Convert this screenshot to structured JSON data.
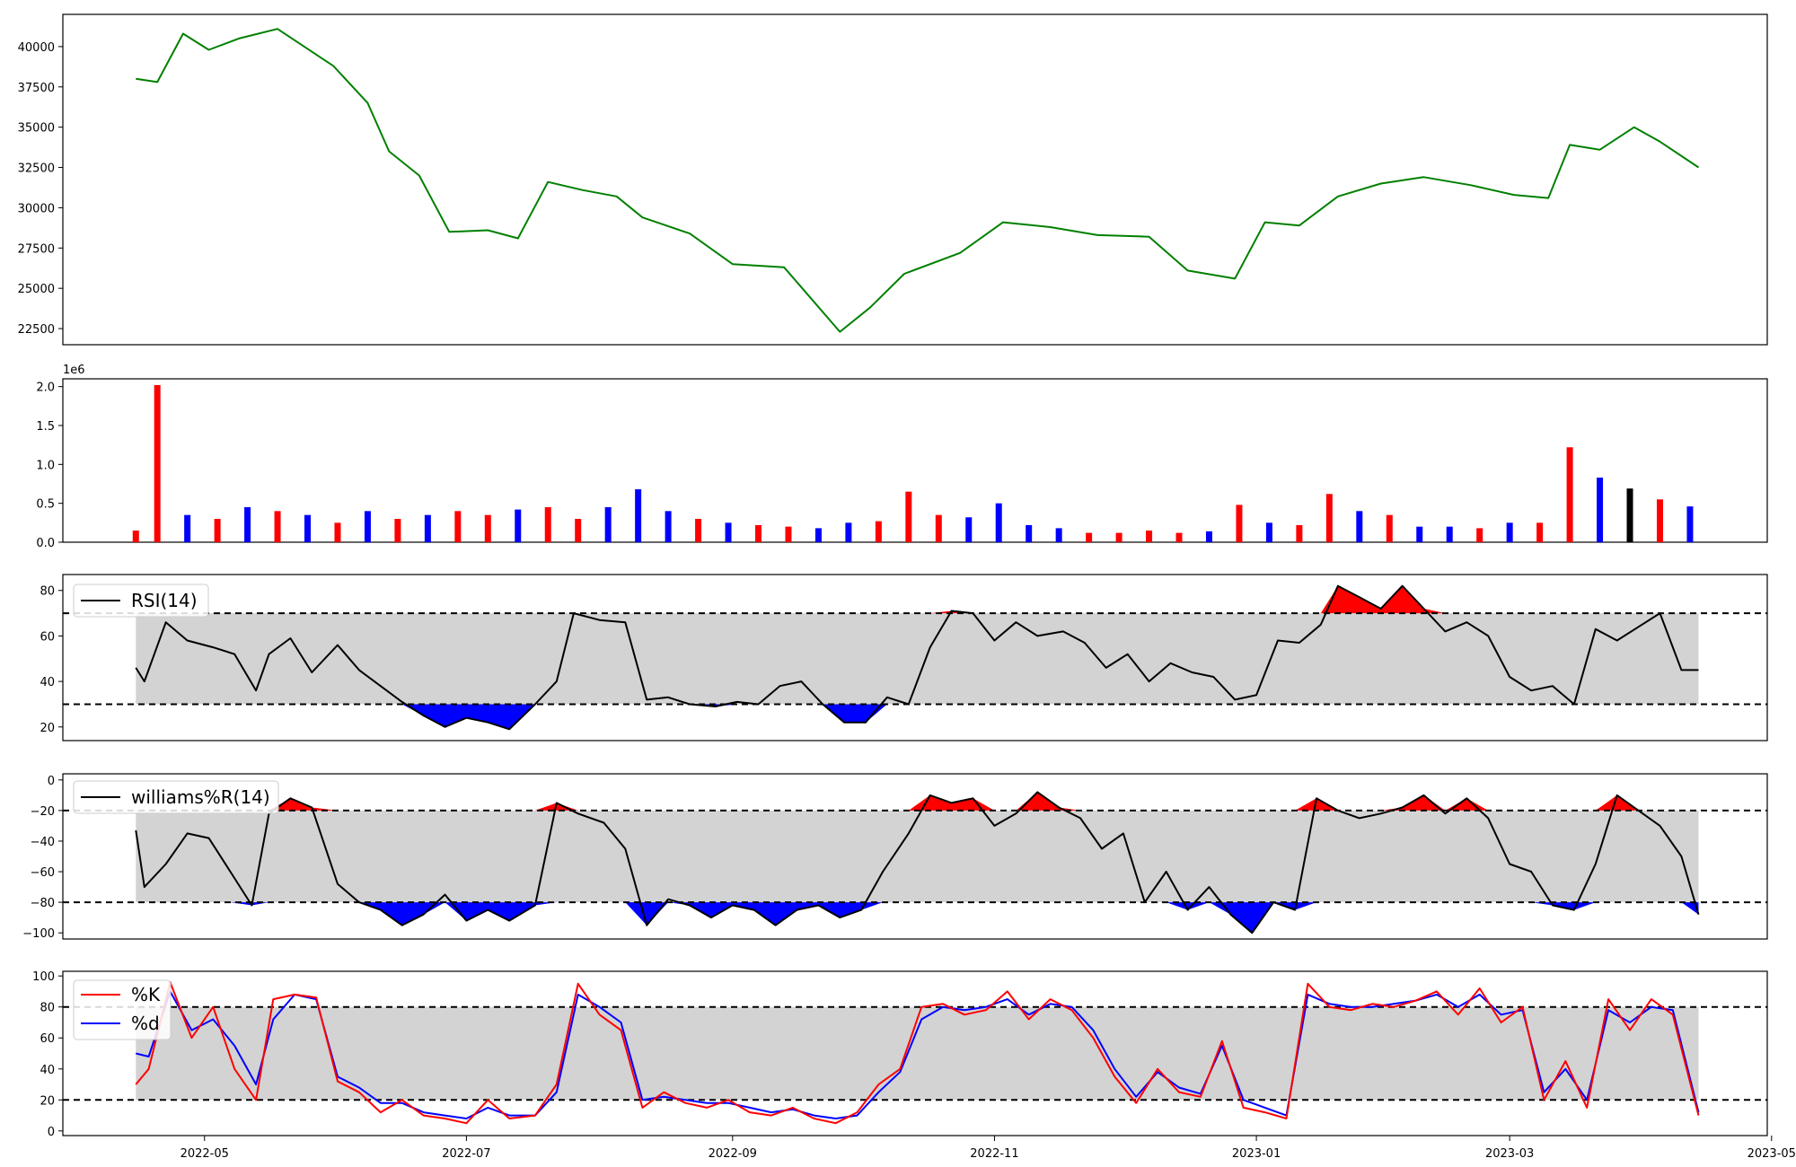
{
  "chart_data": [
    {
      "type": "line",
      "panel": "price",
      "ylim": [
        21500,
        42000
      ],
      "yticks": [
        "22500",
        "25000",
        "27500",
        "30000",
        "32500",
        "35000",
        "37500",
        "40000"
      ],
      "colors": {
        "line": "#008000"
      },
      "x": [
        "2022-04-15",
        "2022-04-20",
        "2022-04-26",
        "2022-05-02",
        "2022-05-09",
        "2022-05-18",
        "2022-05-31",
        "2022-06-08",
        "2022-06-13",
        "2022-06-20",
        "2022-06-27",
        "2022-07-06",
        "2022-07-13",
        "2022-07-20",
        "2022-07-28",
        "2022-08-05",
        "2022-08-11",
        "2022-08-22",
        "2022-09-01",
        "2022-09-13",
        "2022-09-26",
        "2022-10-03",
        "2022-10-11",
        "2022-10-24",
        "2022-11-03",
        "2022-11-14",
        "2022-11-25",
        "2022-12-07",
        "2022-12-16",
        "2022-12-27",
        "2023-01-03",
        "2023-01-11",
        "2023-01-20",
        "2023-01-30",
        "2023-02-09",
        "2023-02-20",
        "2023-03-02",
        "2023-03-10",
        "2023-03-15",
        "2023-03-22",
        "2023-03-30",
        "2023-04-05",
        "2023-04-14"
      ],
      "values": [
        38000,
        37800,
        40800,
        39800,
        40500,
        41100,
        38800,
        36500,
        33500,
        32000,
        28500,
        28600,
        28100,
        31600,
        31100,
        30700,
        29400,
        28400,
        26500,
        26300,
        22300,
        23800,
        25900,
        27200,
        29100,
        28800,
        28300,
        28200,
        26100,
        25600,
        29100,
        28900,
        30700,
        31500,
        31900,
        31400,
        30800,
        30600,
        33900,
        33600,
        35000,
        34100,
        32500
      ]
    },
    {
      "type": "bar",
      "panel": "volume",
      "ylim": [
        0,
        2.1
      ],
      "yticks": [
        "0.0",
        "0.5",
        "1.0",
        "1.5",
        "2.0"
      ],
      "y_multiplier": "1e6",
      "colors": {
        "up": "#ff0000",
        "down": "#0000ff",
        "flat": "#000000"
      },
      "categories": [
        "2022-04-15",
        "2022-04-20",
        "2022-04-27",
        "2022-05-04",
        "2022-05-11",
        "2022-05-18",
        "2022-05-25",
        "2022-06-01",
        "2022-06-08",
        "2022-06-15",
        "2022-06-22",
        "2022-06-29",
        "2022-07-06",
        "2022-07-13",
        "2022-07-20",
        "2022-07-27",
        "2022-08-03",
        "2022-08-10",
        "2022-08-17",
        "2022-08-24",
        "2022-08-31",
        "2022-09-07",
        "2022-09-14",
        "2022-09-21",
        "2022-09-28",
        "2022-10-05",
        "2022-10-12",
        "2022-10-19",
        "2022-10-26",
        "2022-11-02",
        "2022-11-09",
        "2022-11-16",
        "2022-11-23",
        "2022-11-30",
        "2022-12-07",
        "2022-12-14",
        "2022-12-21",
        "2022-12-28",
        "2023-01-04",
        "2023-01-11",
        "2023-01-18",
        "2023-01-25",
        "2023-02-01",
        "2023-02-08",
        "2023-02-15",
        "2023-02-22",
        "2023-03-01",
        "2023-03-08",
        "2023-03-15",
        "2023-03-22",
        "2023-03-29",
        "2023-04-05",
        "2023-04-12"
      ],
      "values": [
        0.15,
        2.02,
        0.35,
        0.3,
        0.45,
        0.4,
        0.35,
        0.25,
        0.4,
        0.3,
        0.35,
        0.4,
        0.35,
        0.42,
        0.45,
        0.3,
        0.45,
        0.68,
        0.4,
        0.3,
        0.25,
        0.22,
        0.2,
        0.18,
        0.25,
        0.27,
        0.65,
        0.35,
        0.32,
        0.5,
        0.22,
        0.18,
        0.12,
        0.12,
        0.15,
        0.12,
        0.14,
        0.48,
        0.25,
        0.22,
        0.62,
        0.4,
        0.35,
        0.2,
        0.2,
        0.18,
        0.25,
        0.25,
        1.22,
        0.83,
        0.69,
        0.55,
        0.46
      ],
      "direction": [
        "up",
        "up",
        "down",
        "up",
        "down",
        "up",
        "down",
        "up",
        "down",
        "up",
        "down",
        "up",
        "up",
        "down",
        "up",
        "up",
        "down",
        "down",
        "down",
        "up",
        "down",
        "up",
        "up",
        "down",
        "down",
        "up",
        "up",
        "up",
        "down",
        "down",
        "down",
        "down",
        "up",
        "up",
        "up",
        "up",
        "down",
        "up",
        "down",
        "up",
        "up",
        "down",
        "up",
        "down",
        "down",
        "up",
        "down",
        "up",
        "up",
        "down",
        "flat",
        "up",
        "down"
      ]
    },
    {
      "type": "line",
      "panel": "rsi",
      "legend": "RSI(14)",
      "ylim": [
        14,
        87
      ],
      "yticks": [
        "20",
        "40",
        "60",
        "80"
      ],
      "thresholds": [
        30,
        70
      ],
      "colors": {
        "line": "#000000",
        "over": "#ff0000",
        "under": "#0000ff",
        "band": "#d3d3d3"
      },
      "x": [
        "2022-04-15",
        "2022-04-17",
        "2022-04-22",
        "2022-04-27",
        "2022-05-03",
        "2022-05-08",
        "2022-05-13",
        "2022-05-16",
        "2022-05-21",
        "2022-05-26",
        "2022-06-01",
        "2022-06-06",
        "2022-06-11",
        "2022-06-16",
        "2022-06-21",
        "2022-06-26",
        "2022-07-01",
        "2022-07-06",
        "2022-07-11",
        "2022-07-17",
        "2022-07-22",
        "2022-07-26",
        "2022-08-01",
        "2022-08-07",
        "2022-08-12",
        "2022-08-17",
        "2022-08-22",
        "2022-08-28",
        "2022-09-02",
        "2022-09-07",
        "2022-09-12",
        "2022-09-17",
        "2022-09-22",
        "2022-09-27",
        "2022-10-02",
        "2022-10-07",
        "2022-10-12",
        "2022-10-17",
        "2022-10-22",
        "2022-10-27",
        "2022-11-01",
        "2022-11-06",
        "2022-11-11",
        "2022-11-17",
        "2022-11-22",
        "2022-11-27",
        "2022-12-02",
        "2022-12-07",
        "2022-12-12",
        "2022-12-17",
        "2022-12-22",
        "2022-12-27",
        "2023-01-01",
        "2023-01-06",
        "2023-01-11",
        "2023-01-16",
        "2023-01-20",
        "2023-01-25",
        "2023-01-30",
        "2023-02-04",
        "2023-02-09",
        "2023-02-14",
        "2023-02-19",
        "2023-02-24",
        "2023-03-01",
        "2023-03-06",
        "2023-03-11",
        "2023-03-16",
        "2023-03-21",
        "2023-03-26",
        "2023-03-31",
        "2023-04-05",
        "2023-04-10",
        "2023-04-14"
      ],
      "values": [
        46,
        40,
        66,
        58,
        55,
        52,
        36,
        52,
        59,
        44,
        56,
        45,
        38,
        31,
        25,
        20,
        24,
        22,
        19,
        30,
        40,
        70,
        67,
        66,
        32,
        33,
        30,
        29,
        31,
        30,
        38,
        40,
        30,
        22,
        22,
        33,
        30,
        55,
        71,
        70,
        58,
        66,
        60,
        62,
        57,
        46,
        52,
        40,
        48,
        44,
        42,
        32,
        34,
        58,
        57,
        65,
        82,
        77,
        72,
        82,
        72,
        62,
        66,
        60,
        42,
        36,
        38,
        30,
        63,
        58,
        64,
        70,
        45,
        45
      ]
    },
    {
      "type": "line",
      "panel": "williams",
      "legend": "williams%R(14)",
      "ylim": [
        -104,
        4
      ],
      "yticks": [
        "0",
        "−20",
        "−40",
        "−60",
        "−80",
        "−100"
      ],
      "thresholds": [
        -20,
        -80
      ],
      "colors": {
        "line": "#000000",
        "over": "#ff0000",
        "under": "#0000ff",
        "band": "#d3d3d3"
      },
      "x": [
        "2022-04-15",
        "2022-04-17",
        "2022-04-22",
        "2022-04-27",
        "2022-05-02",
        "2022-05-07",
        "2022-05-12",
        "2022-05-16",
        "2022-05-21",
        "2022-05-26",
        "2022-06-01",
        "2022-06-06",
        "2022-06-11",
        "2022-06-16",
        "2022-06-21",
        "2022-06-26",
        "2022-07-01",
        "2022-07-06",
        "2022-07-11",
        "2022-07-17",
        "2022-07-22",
        "2022-07-27",
        "2022-08-02",
        "2022-08-07",
        "2022-08-12",
        "2022-08-17",
        "2022-08-22",
        "2022-08-27",
        "2022-09-01",
        "2022-09-06",
        "2022-09-11",
        "2022-09-16",
        "2022-09-21",
        "2022-09-26",
        "2022-10-01",
        "2022-10-06",
        "2022-10-12",
        "2022-10-17",
        "2022-10-22",
        "2022-10-27",
        "2022-11-01",
        "2022-11-06",
        "2022-11-11",
        "2022-11-16",
        "2022-11-21",
        "2022-11-26",
        "2022-12-01",
        "2022-12-06",
        "2022-12-11",
        "2022-12-16",
        "2022-12-21",
        "2022-12-26",
        "2022-12-31",
        "2023-01-05",
        "2023-01-10",
        "2023-01-15",
        "2023-01-20",
        "2023-01-25",
        "2023-01-30",
        "2023-02-04",
        "2023-02-09",
        "2023-02-14",
        "2023-02-19",
        "2023-02-24",
        "2023-03-01",
        "2023-03-06",
        "2023-03-11",
        "2023-03-16",
        "2023-03-21",
        "2023-03-26",
        "2023-03-31",
        "2023-04-05",
        "2023-04-10",
        "2023-04-14"
      ],
      "values": [
        -33,
        -70,
        -55,
        -35,
        -38,
        -60,
        -82,
        -22,
        -12,
        -18,
        -68,
        -80,
        -85,
        -95,
        -88,
        -75,
        -92,
        -85,
        -92,
        -82,
        -15,
        -22,
        -28,
        -45,
        -95,
        -78,
        -82,
        -90,
        -82,
        -85,
        -95,
        -85,
        -82,
        -90,
        -85,
        -60,
        -35,
        -10,
        -15,
        -12,
        -30,
        -22,
        -8,
        -18,
        -25,
        -45,
        -35,
        -80,
        -60,
        -85,
        -70,
        -88,
        -100,
        -80,
        -85,
        -12,
        -20,
        -25,
        -22,
        -18,
        -10,
        -22,
        -12,
        -25,
        -55,
        -60,
        -82,
        -85,
        -55,
        -10,
        -20,
        -30,
        -50,
        -88
      ]
    },
    {
      "type": "line",
      "panel": "stochastic",
      "ylim": [
        -3,
        103
      ],
      "yticks": [
        "0",
        "20",
        "40",
        "60",
        "80",
        "100"
      ],
      "thresholds": [
        20,
        80
      ],
      "colors": {
        "k": "#ff0000",
        "d": "#0000ff",
        "band": "#d3d3d3"
      },
      "x": [
        "2022-04-15",
        "2022-04-18",
        "2022-04-23",
        "2022-04-28",
        "2022-05-03",
        "2022-05-08",
        "2022-05-13",
        "2022-05-17",
        "2022-05-22",
        "2022-05-27",
        "2022-06-01",
        "2022-06-06",
        "2022-06-11",
        "2022-06-16",
        "2022-06-21",
        "2022-06-26",
        "2022-07-01",
        "2022-07-06",
        "2022-07-11",
        "2022-07-17",
        "2022-07-22",
        "2022-07-27",
        "2022-08-01",
        "2022-08-06",
        "2022-08-11",
        "2022-08-16",
        "2022-08-21",
        "2022-08-26",
        "2022-08-31",
        "2022-09-05",
        "2022-09-10",
        "2022-09-15",
        "2022-09-20",
        "2022-09-25",
        "2022-09-30",
        "2022-10-05",
        "2022-10-10",
        "2022-10-15",
        "2022-10-20",
        "2022-10-25",
        "2022-10-30",
        "2022-11-04",
        "2022-11-09",
        "2022-11-14",
        "2022-11-19",
        "2022-11-24",
        "2022-11-29",
        "2022-12-04",
        "2022-12-09",
        "2022-12-14",
        "2022-12-19",
        "2022-12-24",
        "2022-12-29",
        "2023-01-03",
        "2023-01-08",
        "2023-01-13",
        "2023-01-18",
        "2023-01-23",
        "2023-01-28",
        "2023-02-02",
        "2023-02-07",
        "2023-02-12",
        "2023-02-17",
        "2023-02-22",
        "2023-02-27",
        "2023-03-04",
        "2023-03-09",
        "2023-03-14",
        "2023-03-19",
        "2023-03-24",
        "2023-03-29",
        "2023-04-03",
        "2023-04-08",
        "2023-04-14"
      ],
      "series": [
        {
          "name": "%K",
          "values": [
            30,
            40,
            96,
            60,
            80,
            40,
            20,
            85,
            88,
            86,
            32,
            25,
            12,
            20,
            10,
            8,
            5,
            20,
            8,
            10,
            30,
            95,
            75,
            65,
            15,
            25,
            18,
            15,
            20,
            12,
            10,
            15,
            8,
            5,
            12,
            30,
            40,
            80,
            82,
            75,
            78,
            90,
            72,
            85,
            78,
            60,
            35,
            18,
            40,
            25,
            22,
            58,
            15,
            12,
            8,
            95,
            80,
            78,
            82,
            80,
            84,
            90,
            75,
            92,
            70,
            80,
            20,
            45,
            15,
            85,
            65,
            85,
            75,
            10
          ],
          "legend": "%K"
        },
        {
          "name": "%d",
          "values": [
            50,
            48,
            90,
            65,
            72,
            55,
            30,
            72,
            88,
            85,
            35,
            28,
            18,
            18,
            12,
            10,
            8,
            15,
            10,
            10,
            25,
            88,
            80,
            70,
            20,
            22,
            20,
            18,
            18,
            15,
            12,
            14,
            10,
            8,
            10,
            25,
            38,
            72,
            80,
            78,
            80,
            85,
            75,
            82,
            80,
            65,
            40,
            22,
            38,
            28,
            24,
            55,
            20,
            15,
            10,
            88,
            82,
            80,
            80,
            82,
            84,
            88,
            80,
            88,
            75,
            78,
            25,
            40,
            20,
            78,
            70,
            80,
            78,
            12
          ],
          "legend": "%d"
        }
      ]
    },
    {
      "type": "axis",
      "panel": "xaxis",
      "xticks": [
        "2022-05",
        "2022-07",
        "2022-09",
        "2022-11",
        "2023-01",
        "2023-03",
        "2023-05"
      ],
      "xlim": [
        "2022-03-29",
        "2023-04-30"
      ]
    }
  ]
}
